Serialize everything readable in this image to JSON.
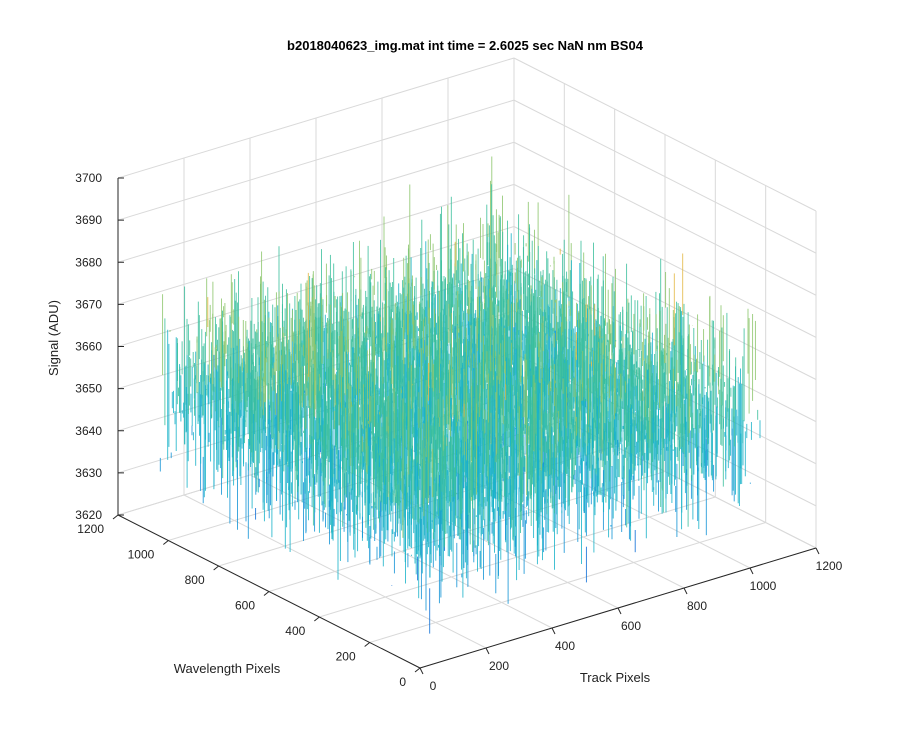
{
  "chart_data": {
    "type": "surface",
    "title": "b2018040623_img.mat int time = 2.6025 sec  NaN nm BS04",
    "xlabel": "Track Pixels",
    "ylabel": "Wavelength Pixels",
    "zlabel": "Signal (ADU)",
    "xlim": [
      0,
      1200
    ],
    "ylim": [
      0,
      1200
    ],
    "zlim": [
      3620,
      3700
    ],
    "x_ticks": [
      0,
      200,
      400,
      600,
      800,
      1000,
      1200
    ],
    "y_ticks": [
      0,
      200,
      400,
      600,
      800,
      1000,
      1200
    ],
    "z_ticks": [
      3620,
      3630,
      3640,
      3650,
      3660,
      3670,
      3680,
      3690,
      3700
    ],
    "data_extent": {
      "x": [
        1,
        1024
      ],
      "y": [
        1,
        1024
      ],
      "z": [
        3625,
        3695
      ]
    },
    "signal_mean": 3655,
    "grid": true,
    "colormap": [
      "#0d6fd6",
      "#1393d6",
      "#1ab3c9",
      "#3bbf9c",
      "#8cc56b",
      "#e3b844",
      "#f6c530"
    ]
  }
}
